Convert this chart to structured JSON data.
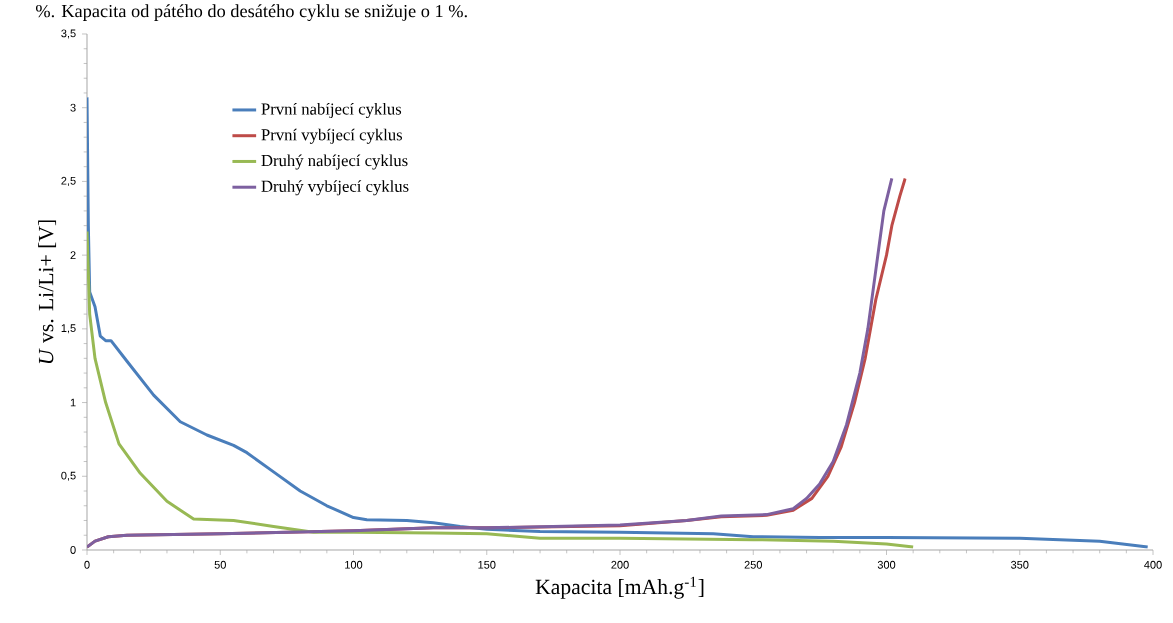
{
  "chart_data": {
    "type": "line",
    "xlabel": "Kapacita [mAh.g$^{-1}$]",
    "ylabel": "*U* vs. Li/Li+  [V]",
    "annotations": [
      "%. Kapacita od pátého do desátého cyklu se snižuje o 1 %."
    ],
    "xlim": [
      0,
      400
    ],
    "xticks": [
      0,
      50,
      100,
      150,
      200,
      250,
      300,
      350,
      400
    ],
    "ylim": [
      0,
      3.5
    ],
    "yticks": [
      0,
      {
        "value": 0.5,
        "label": "0,5"
      },
      1,
      {
        "value": 1.5,
        "label": "1,5"
      },
      2,
      {
        "value": 2.5,
        "label": "2,5"
      },
      3,
      {
        "value": 3.5,
        "label": "3,5"
      }
    ],
    "grid": false,
    "legend": "top left",
    "marker": "none",
    "line_style": "solid",
    "series": [
      {
        "name": "První nabíjecí cyklus",
        "color": "#4a7ebb",
        "x": [
          0,
          0.5,
          1,
          3,
          5,
          7,
          9,
          15,
          25,
          35,
          45,
          55,
          60,
          70,
          80,
          90,
          100,
          105,
          120,
          130,
          140,
          150,
          170,
          200,
          235,
          250,
          275,
          300,
          350,
          380,
          398
        ],
        "values": [
          3.07,
          2.2,
          1.75,
          1.65,
          1.45,
          1.42,
          1.42,
          1.28,
          1.05,
          0.87,
          0.78,
          0.71,
          0.66,
          0.53,
          0.4,
          0.3,
          0.22,
          0.205,
          0.2,
          0.185,
          0.16,
          0.14,
          0.125,
          0.12,
          0.11,
          0.09,
          0.085,
          0.085,
          0.08,
          0.06,
          0.02
        ]
      },
      {
        "name": "První vybíjecí cyklus",
        "color": "#be4b48",
        "x": [
          0,
          3,
          8,
          15,
          50,
          100,
          130,
          150,
          200,
          225,
          238,
          255,
          265,
          272,
          278,
          283,
          288,
          292,
          296,
          300,
          302,
          305,
          307
        ],
        "values": [
          0.02,
          0.06,
          0.09,
          0.1,
          0.11,
          0.13,
          0.15,
          0.15,
          0.165,
          0.2,
          0.225,
          0.235,
          0.27,
          0.35,
          0.5,
          0.7,
          1.0,
          1.3,
          1.7,
          2.0,
          2.2,
          2.4,
          2.52
        ]
      },
      {
        "name": "Druhý nabíjecí cyklus",
        "color": "#98b954",
        "x": [
          0,
          1,
          3,
          7,
          12,
          20,
          30,
          40,
          55,
          70,
          85,
          100,
          130,
          150,
          170,
          200,
          250,
          280,
          300,
          310
        ],
        "values": [
          2.16,
          1.6,
          1.3,
          1.0,
          0.72,
          0.52,
          0.33,
          0.21,
          0.2,
          0.16,
          0.12,
          0.12,
          0.115,
          0.11,
          0.08,
          0.08,
          0.07,
          0.06,
          0.04,
          0.02
        ]
      },
      {
        "name": "Druhý vybíjecí cyklus",
        "color": "#7d60a0",
        "x": [
          0,
          3,
          8,
          15,
          50,
          100,
          130,
          150,
          200,
          225,
          238,
          255,
          265,
          270,
          275,
          280,
          285,
          290,
          293,
          296,
          299,
          302
        ],
        "values": [
          0.02,
          0.06,
          0.09,
          0.1,
          0.11,
          0.13,
          0.15,
          0.15,
          0.17,
          0.2,
          0.23,
          0.24,
          0.28,
          0.35,
          0.45,
          0.6,
          0.85,
          1.2,
          1.5,
          1.9,
          2.3,
          2.52
        ]
      }
    ]
  }
}
